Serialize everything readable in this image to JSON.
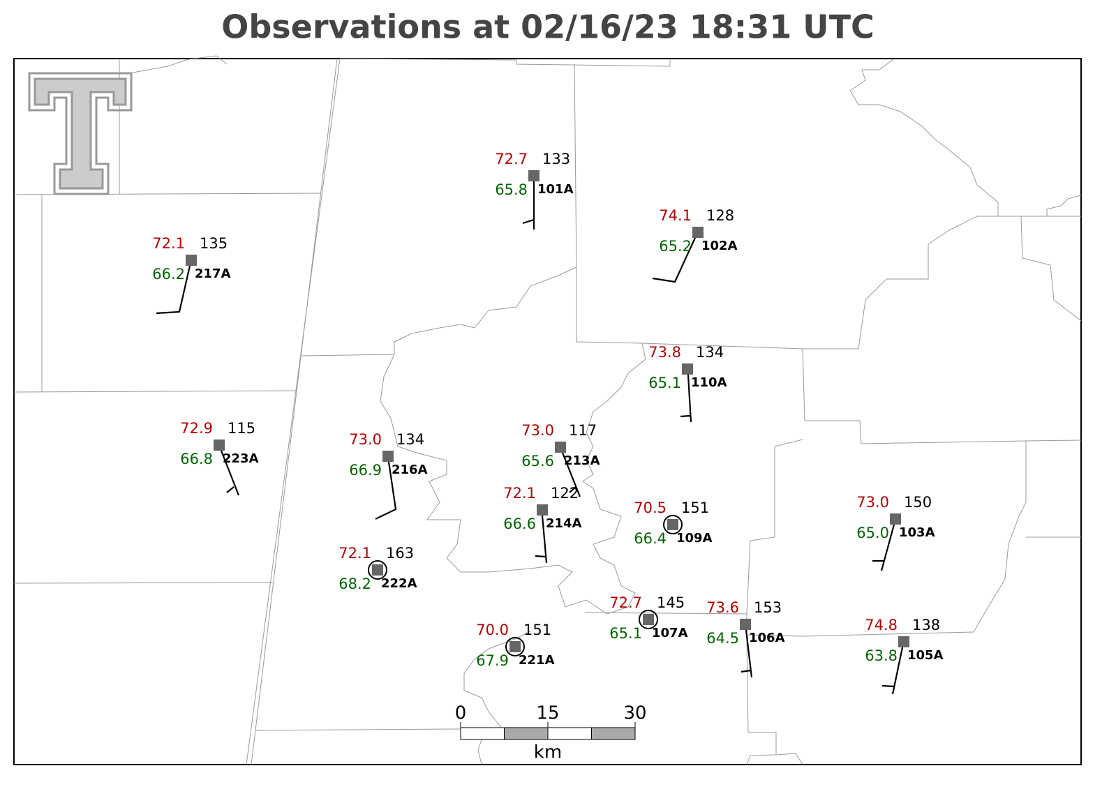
{
  "title": "Observations at 02/16/23 18:31 UTC",
  "stations": [
    {
      "temperature": "72.7",
      "dewpoint": "65.8",
      "pressure": "133",
      "id": "101A"
    },
    {
      "temperature": "74.1",
      "dewpoint": "65.2",
      "pressure": "128",
      "id": "102A"
    },
    {
      "temperature": "72.1",
      "dewpoint": "66.2",
      "pressure": "135",
      "id": "217A"
    },
    {
      "temperature": "73.8",
      "dewpoint": "65.1",
      "pressure": "134",
      "id": "110A"
    },
    {
      "temperature": "72.9",
      "dewpoint": "66.8",
      "pressure": "115",
      "id": "223A"
    },
    {
      "temperature": "73.0",
      "dewpoint": "66.9",
      "pressure": "134",
      "id": "216A"
    },
    {
      "temperature": "73.0",
      "dewpoint": "65.6",
      "pressure": "117",
      "id": "213A"
    },
    {
      "temperature": "72.1",
      "dewpoint": "66.6",
      "pressure": "122",
      "id": "214A"
    },
    {
      "temperature": "70.5",
      "dewpoint": "66.4",
      "pressure": "151",
      "id": "109A"
    },
    {
      "temperature": "73.0",
      "dewpoint": "65.0",
      "pressure": "150",
      "id": "103A"
    },
    {
      "temperature": "72.1",
      "dewpoint": "68.2",
      "pressure": "163",
      "id": "222A"
    },
    {
      "temperature": "72.7",
      "dewpoint": "65.1",
      "pressure": "145",
      "id": "107A"
    },
    {
      "temperature": "73.6",
      "dewpoint": "64.5",
      "pressure": "153",
      "id": "106A"
    },
    {
      "temperature": "70.0",
      "dewpoint": "67.9",
      "pressure": "151",
      "id": "221A"
    },
    {
      "temperature": "74.8",
      "dewpoint": "63.8",
      "pressure": "138",
      "id": "105A"
    }
  ],
  "scale_bar": {
    "ticks": [
      0,
      15,
      30
    ],
    "unit": "km"
  }
}
